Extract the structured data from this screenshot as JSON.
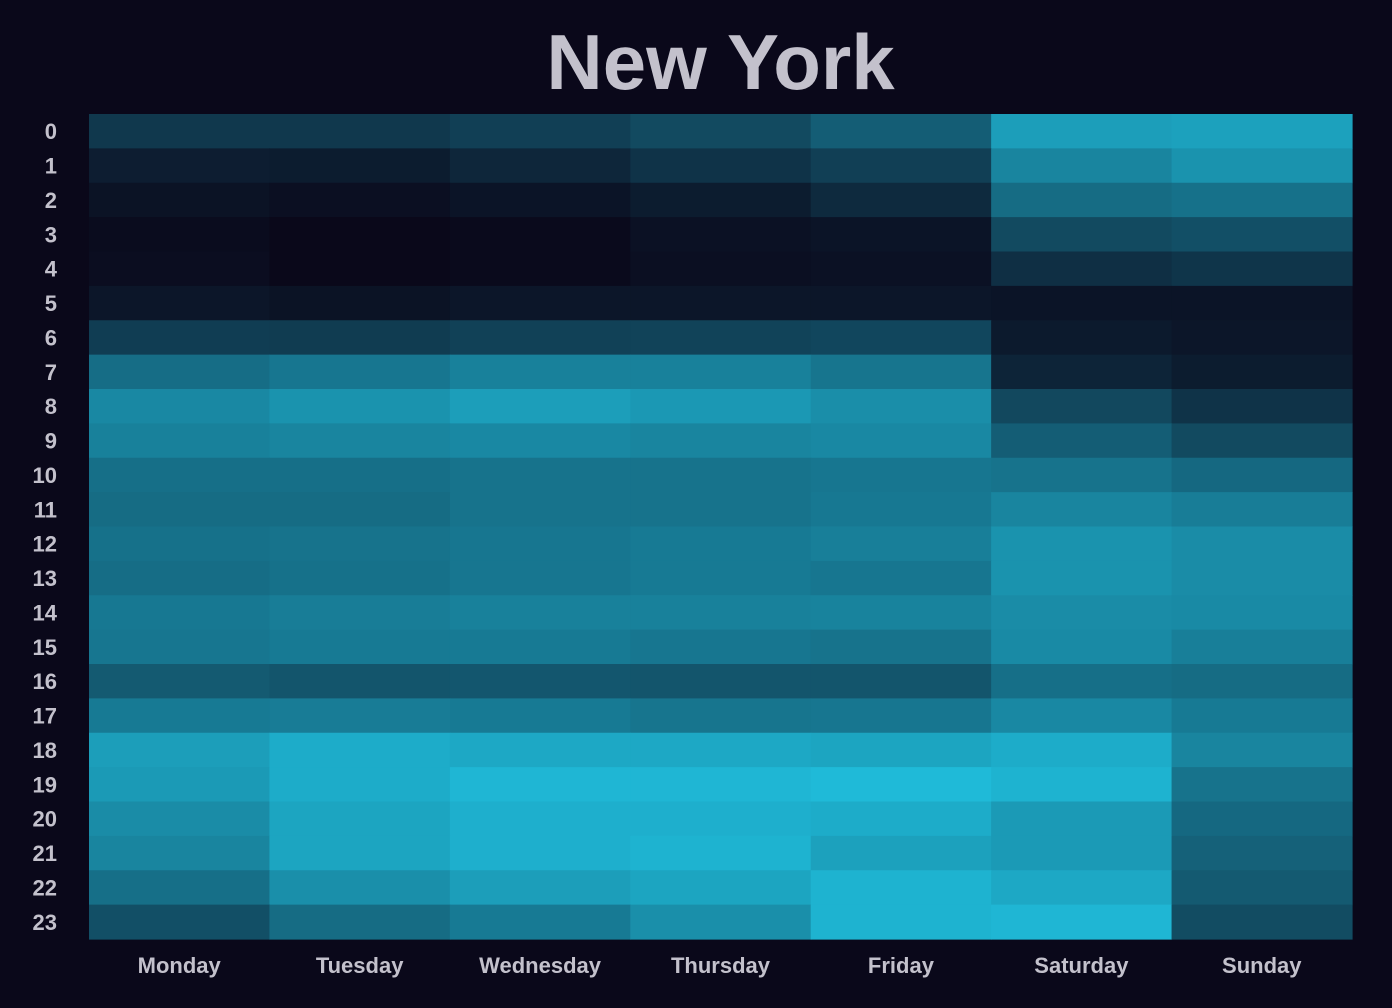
{
  "chart_data": {
    "type": "heatmap",
    "title": "New York",
    "xlabel": "",
    "ylabel": "",
    "categories": [
      "Monday",
      "Tuesday",
      "Wednesday",
      "Thursday",
      "Friday",
      "Saturday",
      "Sunday"
    ],
    "y": [
      "0",
      "1",
      "2",
      "3",
      "4",
      "5",
      "6",
      "7",
      "8",
      "9",
      "10",
      "11",
      "12",
      "13",
      "14",
      "15",
      "16",
      "17",
      "18",
      "19",
      "20",
      "21",
      "22",
      "23"
    ],
    "values": [
      [
        0.27,
        0.27,
        0.31,
        0.37,
        0.48,
        0.84,
        0.86
      ],
      [
        0.12,
        0.11,
        0.17,
        0.24,
        0.31,
        0.7,
        0.78
      ],
      [
        0.06,
        0.04,
        0.07,
        0.11,
        0.19,
        0.56,
        0.59
      ],
      [
        0.02,
        0.0,
        0.01,
        0.05,
        0.07,
        0.37,
        0.4
      ],
      [
        0.03,
        0.0,
        0.01,
        0.04,
        0.05,
        0.22,
        0.25
      ],
      [
        0.08,
        0.06,
        0.08,
        0.08,
        0.08,
        0.07,
        0.07
      ],
      [
        0.3,
        0.29,
        0.32,
        0.33,
        0.35,
        0.1,
        0.08
      ],
      [
        0.57,
        0.62,
        0.68,
        0.68,
        0.61,
        0.16,
        0.11
      ],
      [
        0.72,
        0.78,
        0.84,
        0.81,
        0.75,
        0.36,
        0.24
      ],
      [
        0.68,
        0.7,
        0.72,
        0.7,
        0.72,
        0.48,
        0.37
      ],
      [
        0.58,
        0.58,
        0.6,
        0.6,
        0.62,
        0.6,
        0.54
      ],
      [
        0.56,
        0.56,
        0.6,
        0.6,
        0.63,
        0.7,
        0.66
      ],
      [
        0.59,
        0.6,
        0.62,
        0.64,
        0.67,
        0.78,
        0.74
      ],
      [
        0.57,
        0.59,
        0.62,
        0.64,
        0.62,
        0.78,
        0.74
      ],
      [
        0.63,
        0.66,
        0.68,
        0.68,
        0.69,
        0.74,
        0.73
      ],
      [
        0.62,
        0.64,
        0.64,
        0.62,
        0.6,
        0.73,
        0.67
      ],
      [
        0.46,
        0.43,
        0.44,
        0.43,
        0.43,
        0.58,
        0.56
      ],
      [
        0.64,
        0.65,
        0.64,
        0.61,
        0.62,
        0.72,
        0.64
      ],
      [
        0.84,
        0.92,
        0.9,
        0.9,
        0.88,
        0.92,
        0.7
      ],
      [
        0.82,
        0.92,
        0.98,
        0.98,
        1.0,
        0.96,
        0.6
      ],
      [
        0.74,
        0.88,
        0.94,
        0.94,
        0.92,
        0.82,
        0.54
      ],
      [
        0.7,
        0.88,
        0.94,
        0.96,
        0.86,
        0.82,
        0.5
      ],
      [
        0.58,
        0.76,
        0.84,
        0.88,
        0.96,
        0.9,
        0.46
      ],
      [
        0.4,
        0.56,
        0.64,
        0.76,
        0.96,
        0.98,
        0.38
      ]
    ],
    "value_range": [
      0,
      1
    ],
    "grid": false,
    "legend": "none",
    "colors": {
      "background": "#0a081a",
      "low": "#0a081a",
      "high": "#1fbad8",
      "text": "#c3c1cc"
    }
  }
}
